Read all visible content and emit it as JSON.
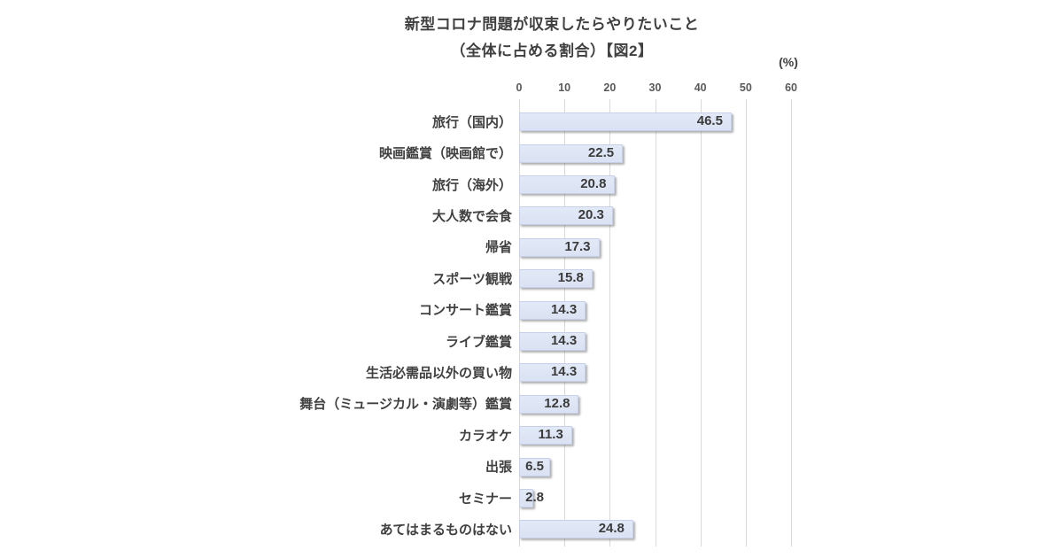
{
  "chart_data": {
    "type": "bar",
    "orientation": "horizontal",
    "title": "新型コロナ問題が収束したらやりたいこと",
    "subtitle": "（全体に占める割合）【図2】",
    "unit_label": "(%)",
    "categories": [
      "旅行（国内）",
      "映画鑑賞（映画館で）",
      "旅行（海外）",
      "大人数で会食",
      "帰省",
      "スポーツ観戦",
      "コンサート鑑賞",
      "ライブ鑑賞",
      "生活必需品以外の買い物",
      "舞台（ミュージカル・演劇等）鑑賞",
      "カラオケ",
      "出張",
      "セミナー",
      "あてはまるものはない"
    ],
    "values": [
      46.5,
      22.5,
      20.8,
      20.3,
      17.3,
      15.8,
      14.3,
      14.3,
      14.3,
      12.8,
      11.3,
      6.5,
      2.8,
      24.8
    ],
    "xlim": [
      0,
      60
    ],
    "x_ticks": [
      0,
      10,
      20,
      30,
      40,
      50,
      60
    ],
    "grid": true,
    "legend": "none",
    "value_label_position": "inside-end",
    "colors": {
      "bar_fill": "#dae2f3",
      "bar_border": "#c6d1e9",
      "gridline": "#d9d9d9",
      "title_text": "#404040",
      "category_text": "#404040",
      "value_text": "#3b3b3b",
      "axis_text": "#595959"
    }
  }
}
